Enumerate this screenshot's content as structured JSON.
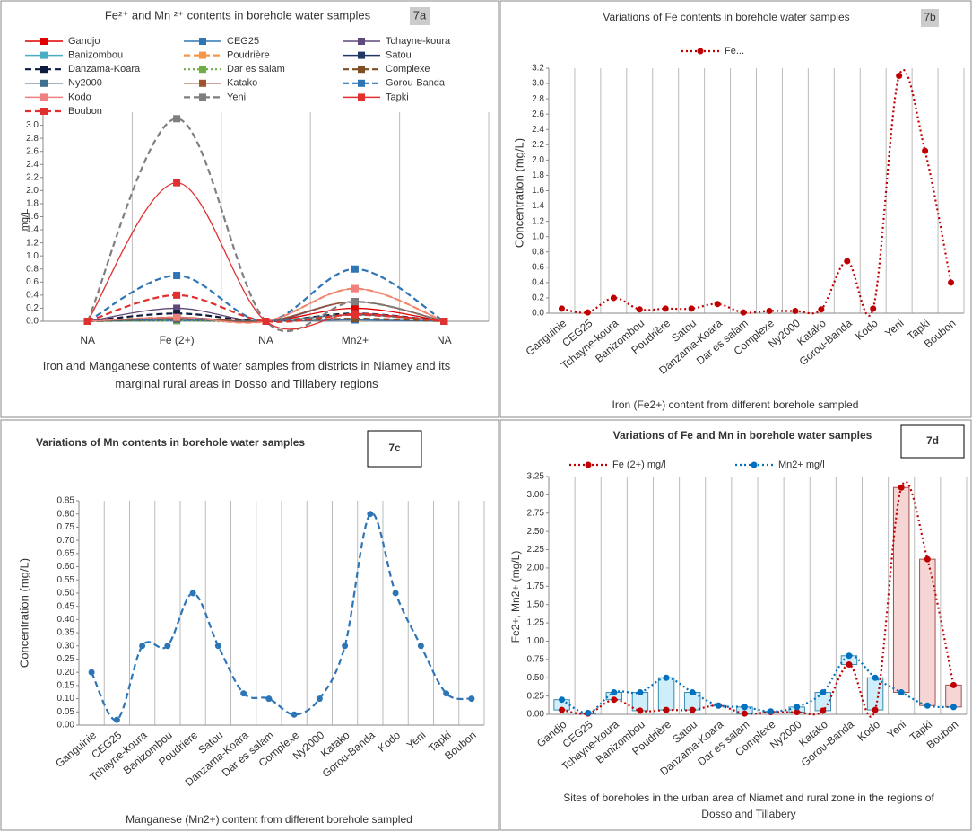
{
  "chart_data": [
    {
      "type": "line",
      "title": "Fe²⁺ and Mn ²⁺ contents in borehole water samples",
      "panel_label": "7a",
      "y_label": "mg/L",
      "x_label": "Iron and Manganese contents of water samples from districts in Niamey and its marginal rural areas in Dosso and Tillabery regions",
      "categories": [
        "NA",
        "Fe (2+)",
        "NA",
        "Mn2+",
        "NA"
      ],
      "smooth": true,
      "grid": "x",
      "ylim": [
        0,
        3.2
      ],
      "yticks": [
        {
          "value": 0,
          "label": "0.0"
        },
        0.2,
        0.4,
        0.6,
        0.8,
        {
          "value": 1,
          "label": "1.0"
        },
        1.2,
        1.4,
        1.6,
        1.8,
        {
          "value": 2,
          "label": "2.0"
        },
        2.2,
        2.4,
        2.6,
        2.8,
        {
          "value": 3,
          "label": "3.0"
        }
      ],
      "series": [
        {
          "name": "Gandjo",
          "color": "#e00000",
          "dash": "solid",
          "marker": "square",
          "values": [
            0,
            0.06,
            0,
            0.2,
            0
          ]
        },
        {
          "name": "CEG25",
          "color": "#2e75b6",
          "dash": "solid",
          "marker": "square",
          "values": [
            0,
            0.01,
            0,
            0.02,
            0
          ]
        },
        {
          "name": "Tchayne-koura",
          "color": "#5f497a",
          "dash": "solid",
          "marker": "square",
          "values": [
            0,
            0.2,
            0,
            0.3,
            0
          ]
        },
        {
          "name": "Banizombou",
          "color": "#4bacc6",
          "dash": "solid",
          "marker": "square",
          "values": [
            0,
            0.05,
            0,
            0.3,
            0
          ]
        },
        {
          "name": "Poudrière",
          "color": "#f79646",
          "dash": "dashed",
          "marker": "square",
          "values": [
            0,
            0.06,
            0,
            0.5,
            0
          ]
        },
        {
          "name": "Satou",
          "color": "#1f3864",
          "dash": "solid",
          "marker": "square",
          "values": [
            0,
            0.06,
            0,
            0.3,
            0
          ]
        },
        {
          "name": "Danzama-Koara",
          "color": "#0d1b3e",
          "dash": "dashed",
          "marker": "square",
          "values": [
            0,
            0.12,
            0,
            0.12,
            0
          ]
        },
        {
          "name": "Dar es salam",
          "color": "#70ad47",
          "dash": "dotted",
          "marker": "square",
          "values": [
            0,
            0.01,
            0,
            0.1,
            0
          ]
        },
        {
          "name": "Complexe",
          "color": "#7f4f24",
          "dash": "dashed",
          "marker": "square",
          "values": [
            0,
            0.03,
            0,
            0.04,
            0
          ]
        },
        {
          "name": "Ny2000",
          "color": "#3f6f8f",
          "dash": "solid",
          "marker": "square",
          "values": [
            0,
            0.03,
            0,
            0.1,
            0
          ]
        },
        {
          "name": "Katako",
          "color": "#a0522d",
          "dash": "solid",
          "marker": "square",
          "values": [
            0,
            0.05,
            0,
            0.3,
            0
          ]
        },
        {
          "name": "Gorou-Banda",
          "color": "#2e75b6",
          "dash": "dashed",
          "marker": "square",
          "values": [
            0,
            0.7,
            0,
            0.8,
            0
          ]
        },
        {
          "name": "Kodo",
          "color": "#f08080",
          "dash": "solid",
          "marker": "square",
          "values": [
            0,
            0.06,
            0,
            0.5,
            0
          ]
        },
        {
          "name": "Yeni",
          "color": "#7f7f7f",
          "dash": "dashed",
          "marker": "square",
          "values": [
            0,
            3.1,
            0,
            0.3,
            0
          ]
        },
        {
          "name": "Tapki",
          "color": "#e03030",
          "dash": "solid",
          "marker": "square",
          "values": [
            0,
            2.12,
            0,
            0.12,
            0
          ]
        },
        {
          "name": "Boubon",
          "color": "#e03030",
          "dash": "dashed",
          "marker": "square",
          "values": [
            0,
            0.4,
            0,
            0.1,
            0
          ]
        }
      ]
    },
    {
      "type": "line",
      "title": "Variations of Fe contents in borehole water samples",
      "panel_label": "7b",
      "y_label": "Concentration (mg/L)",
      "x_label": "Iron (Fe2+) content from different borehole sampled",
      "categories": [
        "Ganguinie",
        "CEG25",
        "Tchayne-koura",
        "Banizombou",
        "Poudrière",
        "Satou",
        "Danzama-Koara",
        "Dar es salam",
        "Complexe",
        "Ny2000",
        "Katako",
        "Gorou-Banda",
        "Kodo",
        "Yeni",
        "Tapki",
        "Boubon"
      ],
      "smooth": true,
      "grid": "x",
      "ylim": [
        0,
        3.2
      ],
      "yticks": [
        {
          "value": 0,
          "label": "0.0"
        },
        0.2,
        0.4,
        0.6,
        0.8,
        {
          "value": 1,
          "label": "1.0"
        },
        1.2,
        1.4,
        1.6,
        1.8,
        {
          "value": 2,
          "label": "2.0"
        },
        2.2,
        2.4,
        2.6,
        2.8,
        {
          "value": 3,
          "label": "3.0"
        },
        3.2
      ],
      "series": [
        {
          "name": "Fe...",
          "color": "#c00000",
          "dash": "dotted",
          "marker": "circle",
          "values": [
            0.06,
            0.01,
            0.2,
            0.05,
            0.06,
            0.06,
            0.12,
            0.01,
            0.03,
            0.03,
            0.05,
            0.68,
            0.06,
            3.1,
            2.12,
            0.4
          ]
        }
      ]
    },
    {
      "type": "line",
      "title": "Variations of Mn contents in borehole water samples",
      "panel_label": "7c",
      "y_label": "Concentration (mg/L)",
      "x_label": "Manganese (Mn2+) content from different borehole sampled",
      "categories": [
        "Ganguinie",
        "CEG25",
        "Tchayne-koura",
        "Banizombou",
        "Poudrière",
        "Satou",
        "Danzama-Koara",
        "Dar es salam",
        "Complexe",
        "Ny2000",
        "Katako",
        "Gorou-Banda",
        "Kodo",
        "Yeni",
        "Tapki",
        "Boubon"
      ],
      "smooth": true,
      "grid": "x",
      "ylim": [
        0,
        0.85
      ],
      "yticks": [
        {
          "value": 0,
          "label": "0.00"
        },
        0.05,
        {
          "value": 0.1,
          "label": "0.10"
        },
        0.15,
        {
          "value": 0.2,
          "label": "0.20"
        },
        0.25,
        {
          "value": 0.3,
          "label": "0.30"
        },
        0.35,
        {
          "value": 0.4,
          "label": "0.40"
        },
        0.45,
        {
          "value": 0.5,
          "label": "0.50"
        },
        0.55,
        {
          "value": 0.6,
          "label": "0.60"
        },
        0.65,
        {
          "value": 0.7,
          "label": "0.70"
        },
        0.75,
        {
          "value": 0.8,
          "label": "0.80"
        },
        0.85
      ],
      "color": "#2e75b6",
      "dash": "dashed",
      "marker": "circle",
      "values": [
        0.2,
        0.02,
        0.3,
        0.3,
        0.5,
        0.3,
        0.12,
        0.1,
        0.04,
        0.1,
        0.3,
        0.8,
        0.5,
        0.3,
        0.12,
        0.1
      ]
    },
    {
      "type": "line",
      "title": "Variations of Fe and Mn in borehole water samples",
      "panel_label": "7d",
      "y_label": "Fe2+, Mn2+ (mg/L)",
      "x_label": "Sites of boreholes in the urban area of Niamet and rural zone in the regions of Dosso and Tillabery",
      "categories": [
        "Gandjo",
        "CEG25",
        "Tchayne-koura",
        "Banizombou",
        "Poudrière",
        "Satou",
        "Danzama-Koara",
        "Dar es salam",
        "Complexe",
        "Ny2000",
        "Katako",
        "Gorou-Banda",
        "Kodo",
        "Yeni",
        "Tapki",
        "Boubon"
      ],
      "smooth": true,
      "grid": "x",
      "updown_bars": true,
      "ylim": [
        0,
        3.25
      ],
      "yticks": [
        {
          "value": 0,
          "label": "0.00"
        },
        0.25,
        {
          "value": 0.5,
          "label": "0.50"
        },
        0.75,
        {
          "value": 1,
          "label": "1.00"
        },
        1.25,
        {
          "value": 1.5,
          "label": "1.50"
        },
        1.75,
        {
          "value": 2,
          "label": "2.00"
        },
        2.25,
        {
          "value": 2.5,
          "label": "2.50"
        },
        2.75,
        {
          "value": 3,
          "label": "3.00"
        },
        3.25
      ],
      "series": [
        {
          "name": "Fe (2+) mg/l",
          "color": "#c00000",
          "dash": "dotted",
          "marker": "circle",
          "values": [
            0.06,
            0.01,
            0.2,
            0.05,
            0.06,
            0.06,
            0.12,
            0.01,
            0.03,
            0.03,
            0.05,
            0.68,
            0.06,
            3.1,
            2.12,
            0.4
          ]
        },
        {
          "name": "Mn2+ mg/l",
          "color": "#0070c0",
          "dash": "dotted",
          "marker": "circle",
          "values": [
            0.2,
            0.02,
            0.3,
            0.3,
            0.5,
            0.3,
            0.12,
            0.1,
            0.04,
            0.1,
            0.3,
            0.8,
            0.5,
            0.3,
            0.12,
            0.1
          ]
        }
      ]
    }
  ]
}
